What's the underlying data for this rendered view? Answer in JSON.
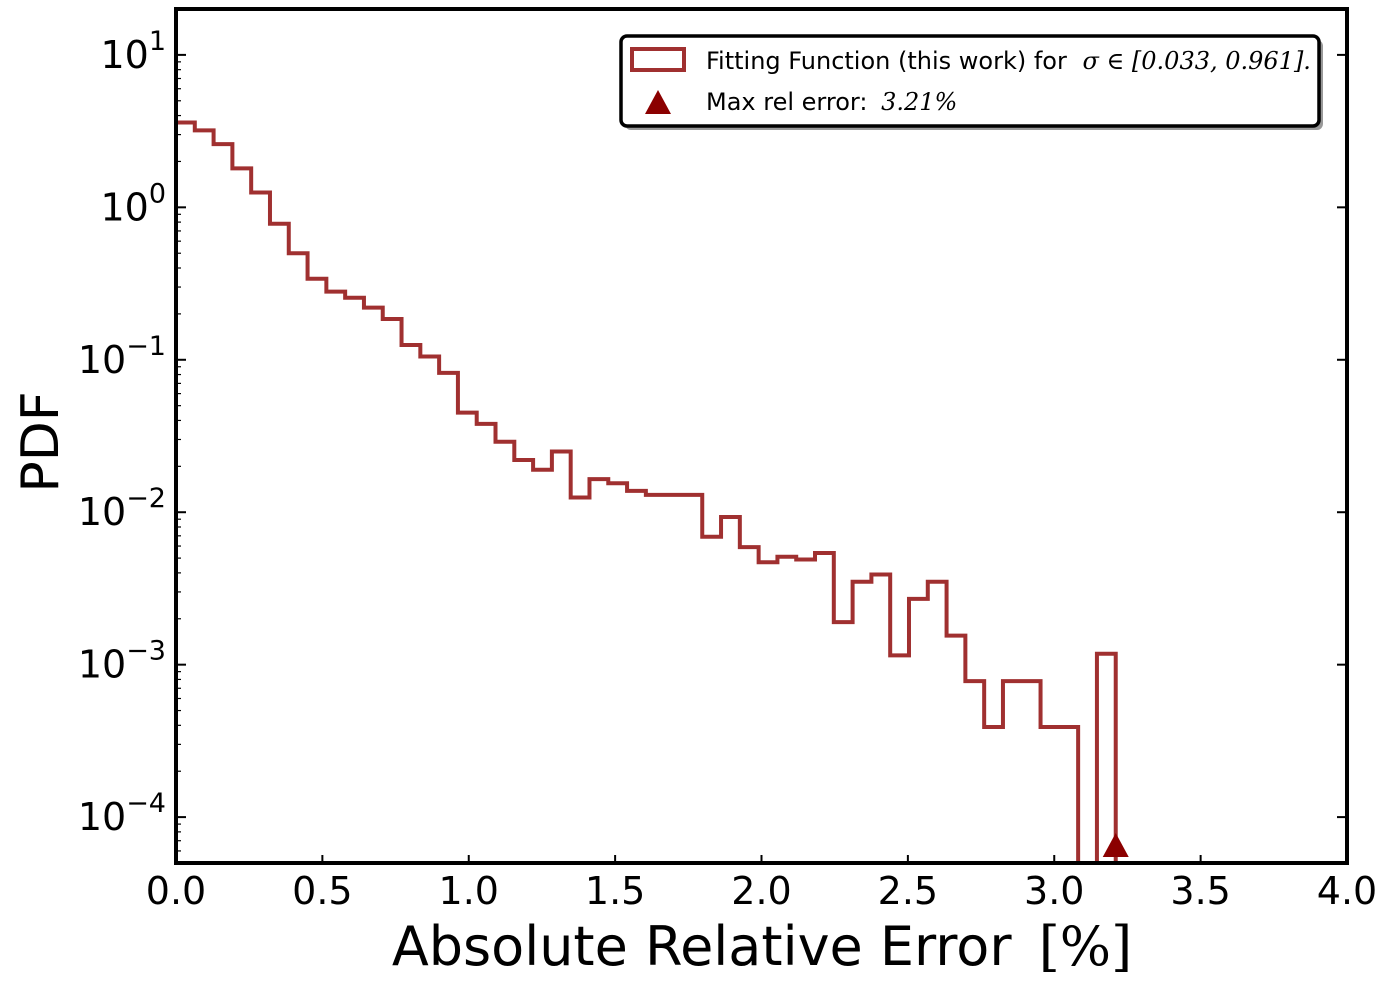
{
  "chart_data": {
    "type": "histogram",
    "xlabel": "Absolute Relative Error",
    "xlabel_unit": "[%]",
    "ylabel": "PDF",
    "yscale": "log",
    "xlim": [
      0.0,
      4.0
    ],
    "ylim": [
      5e-05,
      20
    ],
    "xticks": [
      0.0,
      0.5,
      1.0,
      1.5,
      2.0,
      2.5,
      3.0,
      3.5,
      4.0
    ],
    "xtick_labels": [
      "0.0",
      "0.5",
      "1.0",
      "1.5",
      "2.0",
      "2.5",
      "3.0",
      "3.5",
      "4.0"
    ],
    "yticks": [
      0.0001,
      0.001,
      0.01,
      0.1,
      1,
      10
    ],
    "ytick_exponents": [
      "−4",
      "−3",
      "−2",
      "−1",
      "0",
      "1"
    ],
    "ytick_base": "10",
    "bin_width": 0.0642,
    "series": [
      {
        "name": "Fitting Function (this work) for",
        "name_math": "σ ∈ [0.033, 0.961].",
        "color": "#a03030",
        "bin_edges": [
          0.0,
          0.0642,
          0.1284,
          0.1926,
          0.2568,
          0.321,
          0.3852,
          0.4494,
          0.5136,
          0.5778,
          0.642,
          0.7062,
          0.7704,
          0.8346,
          0.8988,
          0.963,
          1.0272,
          1.0914,
          1.1556,
          1.2198,
          1.284,
          1.3482,
          1.4124,
          1.4766,
          1.5408,
          1.605,
          1.6692,
          1.7334,
          1.7976,
          1.8618,
          1.926,
          1.9902,
          2.0544,
          2.1186,
          2.1828,
          2.247,
          2.3112,
          2.3754,
          2.4396,
          2.5038,
          2.568,
          2.6322,
          2.6964,
          2.7606,
          2.8248,
          2.889,
          2.9532,
          3.0174,
          3.0816,
          3.1458,
          3.21
        ],
        "values": [
          3.6,
          3.2,
          2.6,
          1.8,
          1.25,
          0.78,
          0.5,
          0.34,
          0.28,
          0.255,
          0.22,
          0.185,
          0.125,
          0.105,
          0.082,
          0.045,
          0.038,
          0.029,
          0.022,
          0.019,
          0.025,
          0.0125,
          0.0165,
          0.0155,
          0.0138,
          0.013,
          0.013,
          0.013,
          0.0069,
          0.0093,
          0.0059,
          0.0047,
          0.0051,
          0.0049,
          0.0054,
          0.0019,
          0.0035,
          0.0039,
          0.00115,
          0.0027,
          0.0035,
          0.00155,
          0.00078,
          0.00039,
          0.00078,
          0.00078,
          0.00039,
          0.00039,
          0.0,
          0.00118
        ]
      }
    ],
    "marker": {
      "label": "Max rel error:",
      "label_math": "3.21%",
      "x": 3.21,
      "color": "#8b0000",
      "shape": "triangle-up"
    },
    "legend_position": "upper right",
    "grid": false
  }
}
